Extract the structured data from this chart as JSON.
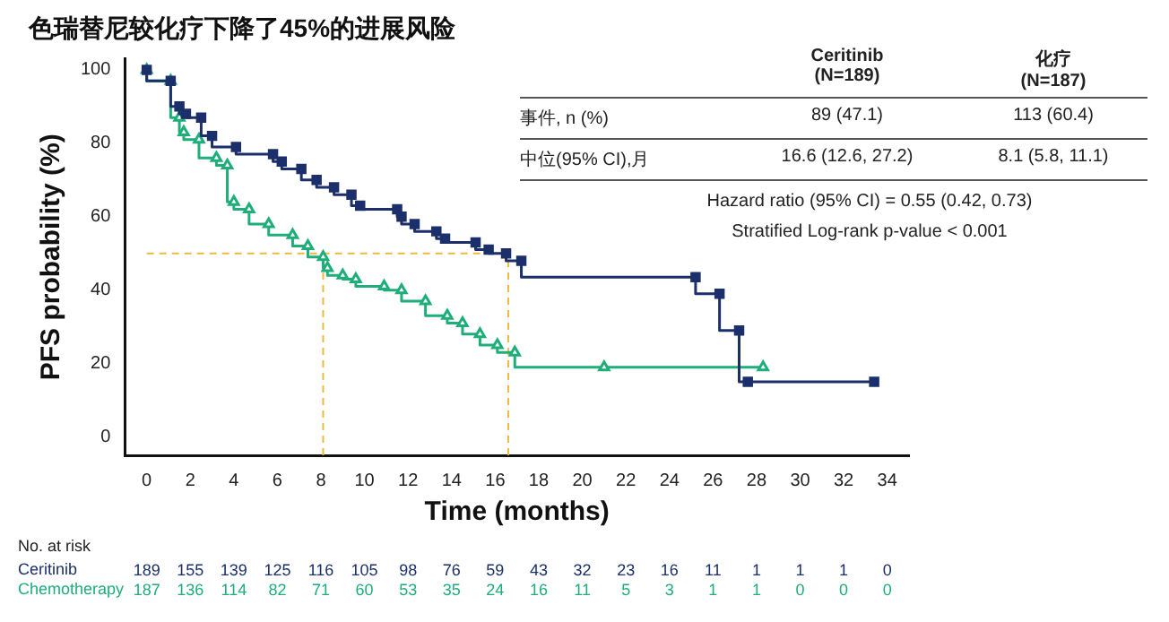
{
  "chart_data": {
    "type": "step",
    "title": "色瑞替尼较化疗下降了45%的进展风险",
    "xlabel": "Time (months)",
    "ylabel": "PFS probability (%)",
    "xlim": [
      -1,
      35
    ],
    "ylim": [
      -5,
      103
    ],
    "xticks": [
      0,
      2,
      4,
      6,
      8,
      10,
      12,
      14,
      16,
      18,
      20,
      22,
      24,
      26,
      28,
      30,
      32,
      34
    ],
    "yticks": [
      0,
      20,
      40,
      60,
      80,
      100
    ],
    "grid": false,
    "legend": false,
    "series": [
      {
        "name": "Ceritinib",
        "color": "#1b2f6b",
        "marker": "square",
        "x": [
          0,
          1.1,
          1.5,
          1.8,
          2.5,
          3,
          4.1,
          5.8,
          6.2,
          7.1,
          7.8,
          8.6,
          9.4,
          9.8,
          11.5,
          11.7,
          12.3,
          13.3,
          13.7,
          15.1,
          15.7,
          16.5,
          17.2,
          25.2,
          26.3,
          27.2,
          27.6,
          33.4
        ],
        "values": [
          100,
          97,
          90,
          88,
          87,
          82,
          79,
          77,
          75,
          73,
          70,
          68,
          66,
          63,
          62,
          60,
          58,
          56,
          54,
          53,
          51,
          50,
          48,
          43.5,
          39,
          29,
          15,
          15
        ]
      },
      {
        "name": "Chemotherapy",
        "color": "#1fae7a",
        "marker": "triangle",
        "x": [
          0,
          1.1,
          1.5,
          1.7,
          2.4,
          3.2,
          3.7,
          4,
          4.7,
          5.6,
          6.7,
          7.4,
          8.1,
          8.3,
          9,
          9.6,
          10.9,
          11.7,
          12.8,
          13.8,
          14.5,
          15.3,
          16.1,
          16.9,
          21,
          28.3
        ],
        "values": [
          100,
          97,
          87,
          83,
          81,
          76,
          74,
          64,
          62,
          58,
          55,
          52,
          49,
          46,
          44,
          43,
          41,
          40,
          37,
          33,
          31,
          28,
          25,
          23,
          19,
          19
        ]
      }
    ],
    "ref_lines": [
      {
        "axis": "y",
        "value": 50,
        "color": "#f0b840",
        "line_style": "dashed"
      },
      {
        "axis": "x",
        "value": 8.1,
        "color": "#f0b840",
        "line_style": "dashed"
      },
      {
        "axis": "x",
        "value": 16.6,
        "color": "#f0b840",
        "line_style": "dashed"
      }
    ],
    "annotations": [
      "Ceritinib\n(N=189)",
      "化疗\n(N=187)",
      "事件, n (%)",
      "89 (47.1)",
      "113 (60.4)",
      "中位(95% CI),月",
      "16.6 (12.6, 27.2)",
      "8.1 (5.8, 11.1)",
      "Hazard ratio (95% CI) = 0.55 (0.42, 0.73)",
      "Stratified Log-rank p-value  < 0.001",
      "No. at risk",
      "189 155 139 125 116 105 98 76 59 43 32 23 16 11 1 1 1 0",
      "187 136 114 82 71 60 53 35 24 16 11 5 3 1 1 0 0 0"
    ]
  }
}
